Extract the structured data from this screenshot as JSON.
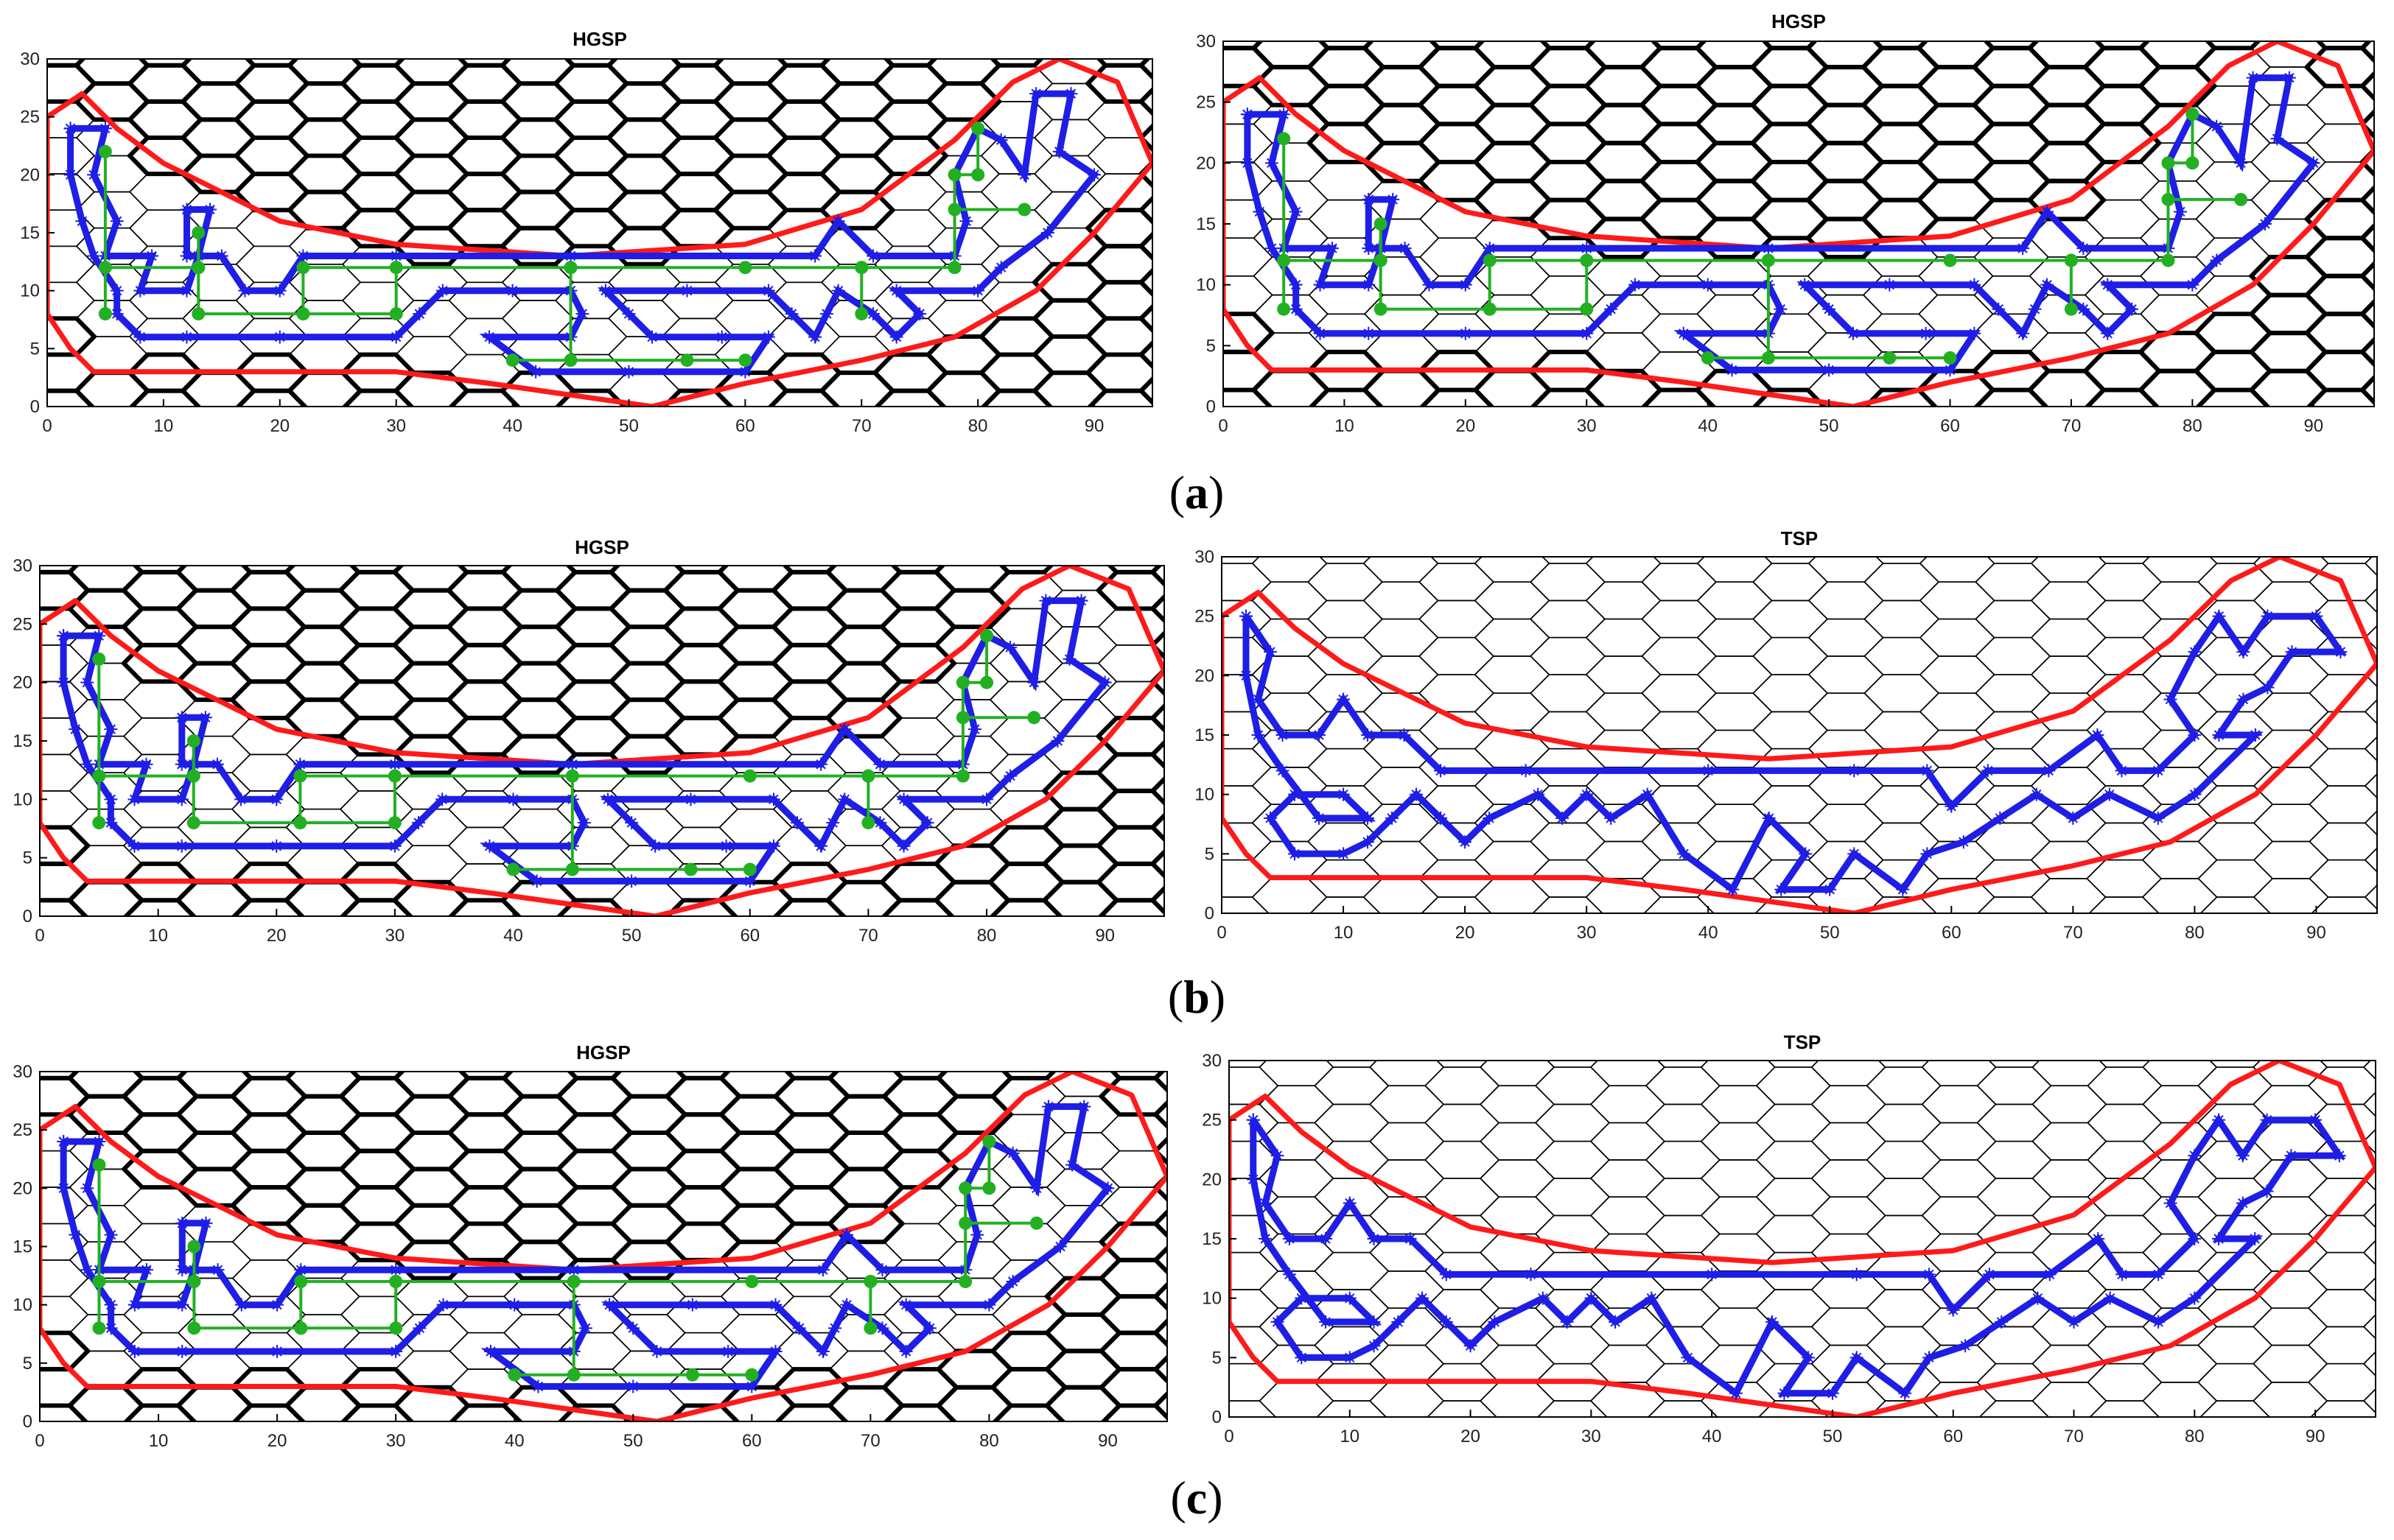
{
  "figure": {
    "panels": [
      {
        "id": "a-left",
        "title": "HGSP",
        "kind": "hgsp"
      },
      {
        "id": "a-right",
        "title": "HGSP",
        "kind": "hgsp"
      },
      {
        "id": "b-left",
        "title": "HGSP",
        "kind": "hgsp"
      },
      {
        "id": "b-right",
        "title": "TSP",
        "kind": "tsp"
      },
      {
        "id": "c-left",
        "title": "HGSP",
        "kind": "hgsp"
      },
      {
        "id": "c-right",
        "title": "TSP",
        "kind": "tsp"
      }
    ],
    "captions": [
      {
        "text_open": "(",
        "text_letter": "a",
        "text_close": ")"
      },
      {
        "text_open": "(",
        "text_letter": "b",
        "text_close": ")"
      },
      {
        "text_open": "(",
        "text_letter": "c",
        "text_close": ")"
      }
    ],
    "axis": {
      "xlim": [
        0,
        95
      ],
      "ylim": [
        0,
        30
      ],
      "xticks": [
        "0",
        "10",
        "20",
        "30",
        "40",
        "50",
        "60",
        "70",
        "80",
        "90"
      ],
      "yticks": [
        "0",
        "5",
        "10",
        "15",
        "20",
        "25",
        "30"
      ]
    },
    "colors": {
      "boundary": "#ff1a1a",
      "path": "#1e1ee6",
      "tree": "#22b022",
      "grid": "#000000"
    },
    "boundary_polygon": [
      [
        0,
        25
      ],
      [
        3,
        27
      ],
      [
        6,
        24
      ],
      [
        10,
        21
      ],
      [
        20,
        16
      ],
      [
        30,
        14
      ],
      [
        45,
        13
      ],
      [
        60,
        14
      ],
      [
        70,
        17
      ],
      [
        78,
        23
      ],
      [
        83,
        28
      ],
      [
        87,
        30
      ],
      [
        92,
        28
      ],
      [
        95,
        21
      ],
      [
        90,
        15
      ],
      [
        85,
        10
      ],
      [
        78,
        6
      ],
      [
        70,
        4
      ],
      [
        60,
        2
      ],
      [
        52,
        0
      ],
      [
        45,
        1
      ],
      [
        38,
        2
      ],
      [
        30,
        3
      ],
      [
        20,
        3
      ],
      [
        10,
        3
      ],
      [
        4,
        3
      ],
      [
        2,
        5
      ],
      [
        0,
        8
      ]
    ],
    "blue_paths": [
      [
        [
          2,
          24
        ],
        [
          5,
          24
        ],
        [
          4,
          20
        ],
        [
          6,
          16
        ],
        [
          5,
          13
        ],
        [
          9,
          13
        ],
        [
          8,
          10
        ],
        [
          12,
          10
        ],
        [
          13,
          13
        ],
        [
          14,
          17
        ],
        [
          12,
          17
        ],
        [
          12,
          13
        ],
        [
          15,
          13
        ],
        [
          17,
          10
        ],
        [
          20,
          10
        ],
        [
          22,
          13
        ],
        [
          30,
          13
        ],
        [
          45,
          13
        ],
        [
          66,
          13
        ],
        [
          68,
          16
        ],
        [
          71,
          13
        ],
        [
          78,
          13
        ],
        [
          79,
          16
        ],
        [
          78,
          20
        ],
        [
          80,
          24
        ],
        [
          82,
          23
        ],
        [
          84,
          20
        ],
        [
          85,
          27
        ],
        [
          88,
          27
        ],
        [
          87,
          22
        ],
        [
          90,
          20
        ],
        [
          86,
          15
        ],
        [
          82,
          12
        ],
        [
          80,
          10
        ],
        [
          73,
          10
        ],
        [
          75,
          8
        ],
        [
          73,
          6
        ],
        [
          71,
          8
        ],
        [
          68,
          10
        ],
        [
          67,
          8
        ],
        [
          66,
          6
        ],
        [
          64,
          8
        ],
        [
          62,
          10
        ],
        [
          55,
          10
        ],
        [
          48,
          10
        ],
        [
          50,
          8
        ],
        [
          52,
          6
        ],
        [
          58,
          6
        ],
        [
          62,
          6
        ],
        [
          60,
          3
        ],
        [
          50,
          3
        ],
        [
          42,
          3
        ],
        [
          38,
          6
        ],
        [
          45,
          6
        ],
        [
          46,
          8
        ],
        [
          45,
          10
        ],
        [
          40,
          10
        ],
        [
          34,
          10
        ],
        [
          32,
          8
        ],
        [
          30,
          6
        ],
        [
          20,
          6
        ],
        [
          12,
          6
        ],
        [
          8,
          6
        ],
        [
          6,
          8
        ],
        [
          6,
          10
        ],
        [
          4,
          13
        ],
        [
          3,
          16
        ],
        [
          2,
          20
        ],
        [
          2,
          24
        ]
      ]
    ],
    "tsp_paths": [
      [
        [
          2,
          25
        ],
        [
          4,
          22
        ],
        [
          3,
          18
        ],
        [
          5,
          15
        ],
        [
          8,
          15
        ],
        [
          10,
          18
        ],
        [
          12,
          15
        ],
        [
          15,
          15
        ],
        [
          18,
          12
        ],
        [
          25,
          12
        ],
        [
          40,
          12
        ],
        [
          52,
          12
        ],
        [
          58,
          12
        ],
        [
          60,
          9
        ],
        [
          63,
          12
        ],
        [
          68,
          12
        ],
        [
          72,
          15
        ],
        [
          74,
          12
        ],
        [
          77,
          12
        ],
        [
          80,
          15
        ],
        [
          78,
          18
        ],
        [
          80,
          22
        ],
        [
          82,
          25
        ],
        [
          84,
          22
        ],
        [
          86,
          25
        ],
        [
          90,
          25
        ],
        [
          92,
          22
        ],
        [
          88,
          22
        ],
        [
          86,
          19
        ],
        [
          84,
          18
        ],
        [
          82,
          15
        ],
        [
          85,
          15
        ],
        [
          80,
          10
        ],
        [
          77,
          8
        ],
        [
          73,
          10
        ],
        [
          70,
          8
        ],
        [
          67,
          10
        ],
        [
          64,
          8
        ],
        [
          61,
          6
        ],
        [
          58,
          5
        ],
        [
          56,
          2
        ],
        [
          52,
          5
        ],
        [
          50,
          2
        ],
        [
          46,
          2
        ],
        [
          48,
          5
        ],
        [
          45,
          8
        ],
        [
          42,
          2
        ],
        [
          38,
          5
        ],
        [
          35,
          10
        ],
        [
          32,
          8
        ],
        [
          30,
          10
        ],
        [
          28,
          8
        ],
        [
          26,
          10
        ],
        [
          22,
          8
        ],
        [
          20,
          6
        ],
        [
          18,
          8
        ],
        [
          16,
          10
        ],
        [
          14,
          8
        ],
        [
          12,
          6
        ],
        [
          10,
          5
        ],
        [
          6,
          5
        ],
        [
          4,
          8
        ],
        [
          6,
          10
        ],
        [
          10,
          10
        ],
        [
          12,
          8
        ],
        [
          8,
          8
        ],
        [
          5,
          12
        ],
        [
          3,
          15
        ],
        [
          2,
          20
        ],
        [
          2,
          25
        ]
      ]
    ],
    "green_trees": [
      [
        [
          5,
          22
        ],
        [
          5,
          12
        ],
        [
          5,
          8
        ]
      ],
      [
        [
          5,
          12
        ],
        [
          13,
          12
        ],
        [
          13,
          15
        ]
      ],
      [
        [
          13,
          12
        ],
        [
          13,
          8
        ],
        [
          22,
          8
        ],
        [
          22,
          12
        ],
        [
          30,
          12
        ],
        [
          30,
          8
        ],
        [
          22,
          8
        ]
      ],
      [
        [
          30,
          12
        ],
        [
          45,
          12
        ],
        [
          60,
          12
        ],
        [
          70,
          12
        ],
        [
          78,
          12
        ],
        [
          78,
          20
        ],
        [
          80,
          20
        ],
        [
          80,
          24
        ]
      ],
      [
        [
          45,
          12
        ],
        [
          45,
          4
        ],
        [
          55,
          4
        ],
        [
          60,
          4
        ],
        [
          40,
          4
        ]
      ],
      [
        [
          70,
          12
        ],
        [
          70,
          8
        ]
      ],
      [
        [
          78,
          17
        ],
        [
          84,
          17
        ]
      ]
    ]
  }
}
